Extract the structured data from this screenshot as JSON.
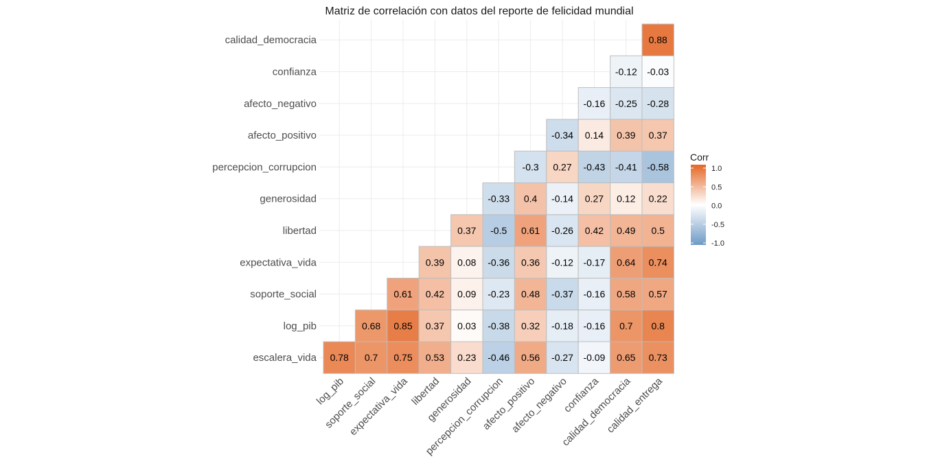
{
  "chart_data": {
    "type": "heatmap",
    "title": "Matriz de correlación con datos del reporte de felicidad mundial",
    "x_categories": [
      "log_pib",
      "soporte_social",
      "expectativa_vida",
      "libertad",
      "generosidad",
      "percepcion_corrupcion",
      "afecto_positivo",
      "afecto_negativo",
      "confianza",
      "calidad_democracia",
      "calidad_entrega"
    ],
    "y_categories": [
      "escalera_vida",
      "log_pib",
      "soporte_social",
      "expectativa_vida",
      "libertad",
      "generosidad",
      "percepcion_corrupcion",
      "afecto_positivo",
      "afecto_negativo",
      "confianza",
      "calidad_democracia"
    ],
    "values": [
      [
        0.78,
        0.7,
        0.75,
        0.53,
        0.23,
        -0.46,
        0.56,
        -0.27,
        -0.09,
        0.65,
        0.73
      ],
      [
        null,
        0.68,
        0.85,
        0.37,
        0.03,
        -0.38,
        0.32,
        -0.18,
        -0.16,
        0.7,
        0.8
      ],
      [
        null,
        null,
        0.61,
        0.42,
        0.09,
        -0.23,
        0.48,
        -0.37,
        -0.16,
        0.58,
        0.57
      ],
      [
        null,
        null,
        null,
        0.39,
        0.08,
        -0.36,
        0.36,
        -0.12,
        -0.17,
        0.64,
        0.74
      ],
      [
        null,
        null,
        null,
        null,
        0.37,
        -0.5,
        0.61,
        -0.26,
        0.42,
        0.49,
        0.5
      ],
      [
        null,
        null,
        null,
        null,
        null,
        -0.33,
        0.4,
        -0.14,
        0.27,
        0.12,
        0.22
      ],
      [
        null,
        null,
        null,
        null,
        null,
        null,
        -0.3,
        0.27,
        -0.43,
        -0.41,
        -0.58
      ],
      [
        null,
        null,
        null,
        null,
        null,
        null,
        null,
        -0.34,
        0.14,
        0.39,
        0.37
      ],
      [
        null,
        null,
        null,
        null,
        null,
        null,
        null,
        null,
        -0.16,
        -0.25,
        -0.28
      ],
      [
        null,
        null,
        null,
        null,
        null,
        null,
        null,
        null,
        null,
        -0.12,
        -0.03
      ],
      [
        null,
        null,
        null,
        null,
        null,
        null,
        null,
        null,
        null,
        null,
        0.88
      ]
    ],
    "color_scale": {
      "low": "#6E9AC6",
      "mid": "#FFFFFF",
      "high": "#E46726",
      "limits": [
        -1,
        1
      ]
    },
    "legend": {
      "title": "Corr",
      "position": "right",
      "ticks": [
        {
          "value": 1.0,
          "label": "1.0"
        },
        {
          "value": 0.5,
          "label": "0.5"
        },
        {
          "value": 0.0,
          "label": "0.0"
        },
        {
          "value": -0.5,
          "label": "-0.5"
        },
        {
          "value": -1.0,
          "label": "-1.0"
        }
      ]
    },
    "grid": true
  }
}
